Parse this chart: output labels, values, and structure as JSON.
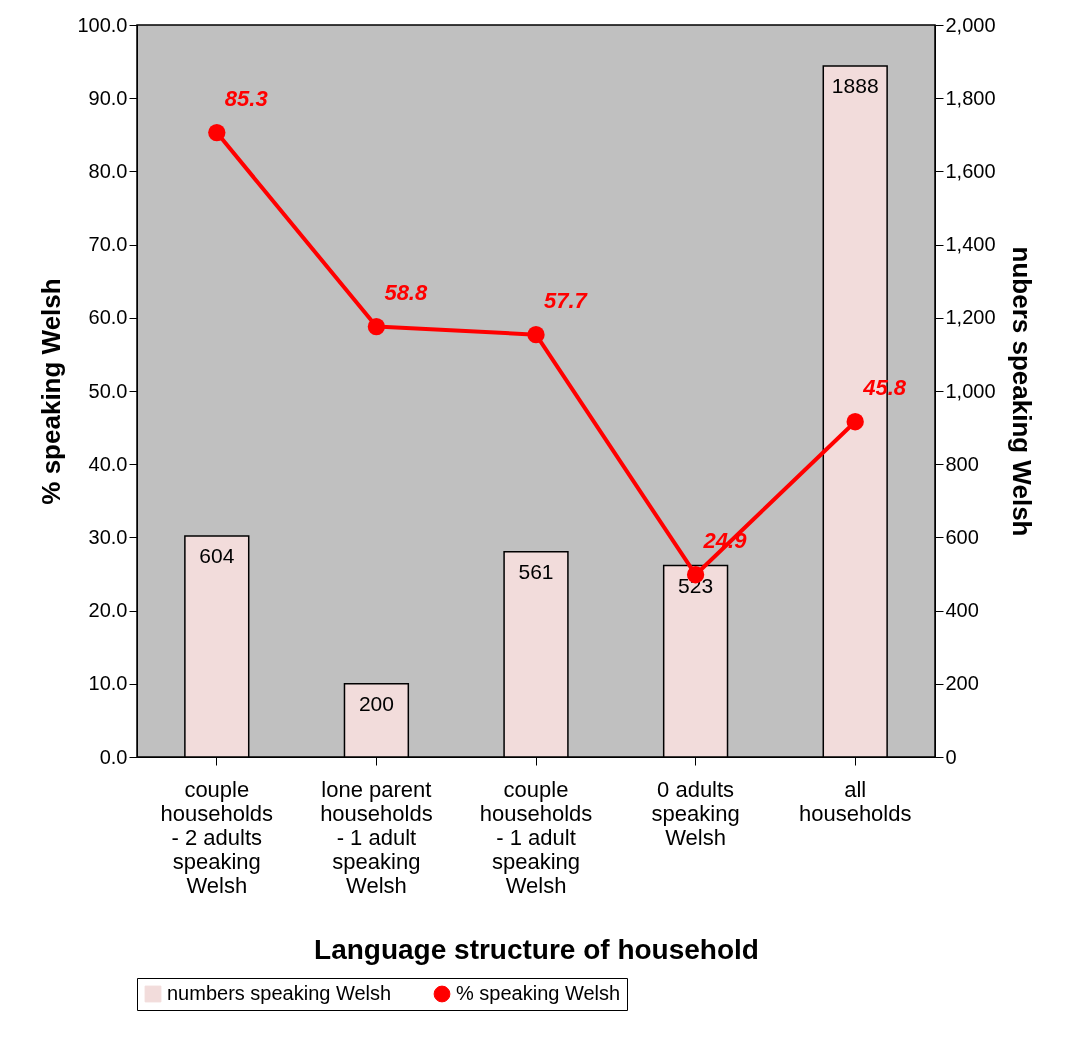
{
  "chart_data": {
    "type": "bar",
    "xlabel": "Language structure of household",
    "ylabel": "% speaking Welsh",
    "y2label": "nubers speaking Welsh",
    "categories": [
      "couple households - 2 adults speaking Welsh",
      "lone parent households - 1 adult speaking Welsh",
      "couple households - 1 adult speaking Welsh",
      "0 adults speaking Welsh",
      "all households"
    ],
    "series": [
      {
        "name": "numbers speaking Welsh",
        "axis": "y2",
        "color": "#f2dcdb",
        "values": [
          604,
          200,
          561,
          523,
          1888
        ]
      },
      {
        "name": "% speaking Welsh",
        "type": "line",
        "color": "#ff0000",
        "marker": "circle",
        "values": [
          85.3,
          58.8,
          57.7,
          24.9,
          45.8
        ]
      }
    ],
    "ylim": [
      0,
      100
    ],
    "yticks": [
      {
        "value": 0,
        "label": "0.0"
      },
      {
        "value": 10,
        "label": "10.0"
      },
      {
        "value": 20,
        "label": "20.0"
      },
      {
        "value": 30,
        "label": "30.0"
      },
      {
        "value": 40,
        "label": "40.0"
      },
      {
        "value": 50,
        "label": "50.0"
      },
      {
        "value": 60,
        "label": "60.0"
      },
      {
        "value": 70,
        "label": "70.0"
      },
      {
        "value": 80,
        "label": "80.0"
      },
      {
        "value": 90,
        "label": "90.0"
      },
      {
        "value": 100,
        "label": "100.0"
      }
    ],
    "y2lim": [
      0,
      2000
    ],
    "y2ticks": [
      0,
      200,
      400,
      600,
      800,
      {
        "value": 1000,
        "label": "1,000"
      },
      {
        "value": 1200,
        "label": "1,200"
      },
      {
        "value": 1400,
        "label": "1,400"
      },
      {
        "value": 1600,
        "label": "1,600"
      },
      {
        "value": 1800,
        "label": "1,800"
      },
      {
        "value": 2000,
        "label": "2,000"
      }
    ],
    "data_labels": true,
    "legend": "bottom",
    "grid": false
  }
}
